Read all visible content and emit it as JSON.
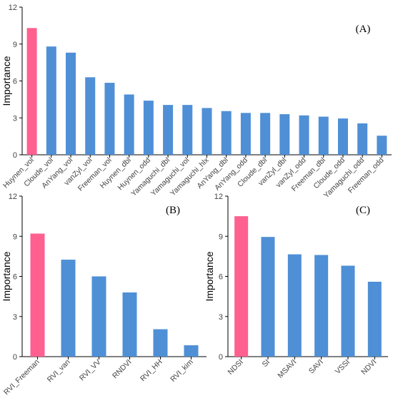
{
  "colors": {
    "highlight": "#ff6090",
    "bar": "#4f8fd6"
  },
  "chart_data": [
    {
      "type": "bar",
      "id": "A",
      "panel_label": "(A)",
      "ylabel": "Importance",
      "ylim": [
        0,
        12
      ],
      "yticks": [
        "0",
        "3",
        "6",
        "9",
        "12"
      ],
      "categories": [
        "Huynen_vol",
        "Cloude_vol",
        "AnYang_vol",
        "vanZyl_vol",
        "Freeman_vol",
        "Huynen_dbl",
        "Huynen_odd",
        "Yamaguchi_dbl",
        "Yamaguchi_vol",
        "Yamaguchi_hlx",
        "AnYang_dbl",
        "AnYang_odd",
        "Cloude_dbl",
        "vanZyl_dbl",
        "vanZyl_odd",
        "Freeman_dbl",
        "Cloude_odd",
        "Yamaguchi_odd",
        "Freeman_odd"
      ],
      "values": [
        10.3,
        8.8,
        8.3,
        6.3,
        5.85,
        4.9,
        4.4,
        4.05,
        4.05,
        3.8,
        3.55,
        3.4,
        3.4,
        3.3,
        3.2,
        3.1,
        2.95,
        2.55,
        1.55
      ],
      "highlight_index": 0,
      "grid": false
    },
    {
      "type": "bar",
      "id": "B",
      "panel_label": "(B)",
      "ylabel": "Importance",
      "ylim": [
        0,
        12
      ],
      "yticks": [
        "0",
        "3",
        "6",
        "9",
        "12"
      ],
      "categories": [
        "RVI_Freeman",
        "RVI_van",
        "RVI_VV",
        "RNDVI",
        "RVI_HH",
        "RVI_kim"
      ],
      "values": [
        9.2,
        7.25,
        6.0,
        4.8,
        2.05,
        0.85
      ],
      "highlight_index": 0,
      "grid": false
    },
    {
      "type": "bar",
      "id": "C",
      "panel_label": "(C)",
      "ylabel": "Importance",
      "ylim": [
        0,
        12
      ],
      "yticks": [
        "0",
        "3",
        "6",
        "9",
        "12"
      ],
      "categories": [
        "NDSI",
        "SI",
        "MSAVI",
        "SAVI",
        "VSSI",
        "NDVI"
      ],
      "values": [
        10.5,
        8.95,
        7.65,
        7.6,
        6.8,
        5.6
      ],
      "highlight_index": 0,
      "grid": false
    }
  ]
}
